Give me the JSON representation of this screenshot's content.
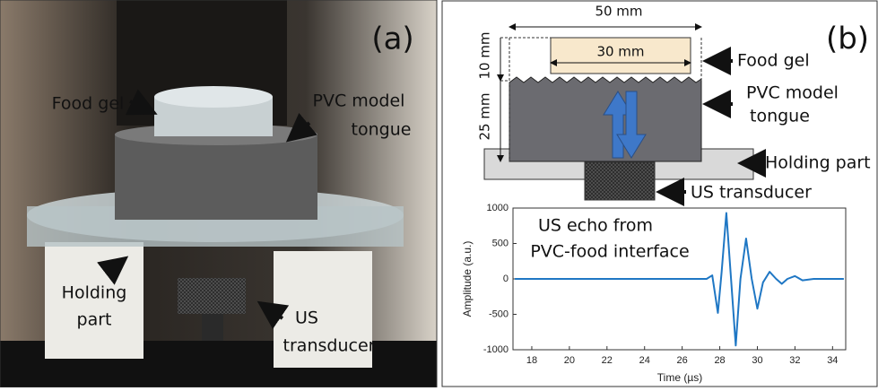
{
  "panel_a": {
    "tag": "(a)",
    "food_gel": "Food gel",
    "pvc_line1": "PVC model",
    "pvc_line2": "tongue",
    "holding_line1": "Holding",
    "holding_line2": "part",
    "us_line1": "US",
    "us_line2": "transducer"
  },
  "panel_b": {
    "tag": "(b)",
    "width_outer": "50 mm",
    "width_inner": "30 mm",
    "height_gel": "10 mm",
    "height_tongue": "25 mm",
    "food_gel": "Food gel",
    "pvc_line1": "PVC model",
    "pvc_line2": "tongue",
    "holding": "Holding part",
    "transducer": "US transducer",
    "annotation_line1": "US echo from",
    "annotation_line2": "PVC-food interface"
  },
  "chart_data": {
    "type": "line",
    "xlabel": "Time (µs)",
    "ylabel": "Amplitude (a.u.)",
    "x": [
      17.1,
      18,
      20,
      22,
      24,
      26,
      27.3,
      27.6,
      27.9,
      28.1,
      28.35,
      28.6,
      28.85,
      29.1,
      29.4,
      29.7,
      30.0,
      30.3,
      30.65,
      31.0,
      31.3,
      31.6,
      32.0,
      32.4,
      33,
      34,
      34.6
    ],
    "series": [
      {
        "color": "#1f77c4",
        "values": [
          0,
          0,
          0,
          0,
          0,
          0,
          0,
          50,
          -480,
          100,
          930,
          0,
          -940,
          0,
          570,
          0,
          -420,
          -50,
          100,
          0,
          -70,
          0,
          40,
          -20,
          0,
          0,
          0
        ]
      }
    ],
    "xlim": [
      17,
      34.7
    ],
    "ylim": [
      -1000,
      1000
    ],
    "xticks": [
      18,
      20,
      22,
      24,
      26,
      28,
      30,
      32,
      34
    ],
    "yticks": [
      -1000,
      -500,
      0,
      500,
      1000
    ],
    "grid": false
  }
}
